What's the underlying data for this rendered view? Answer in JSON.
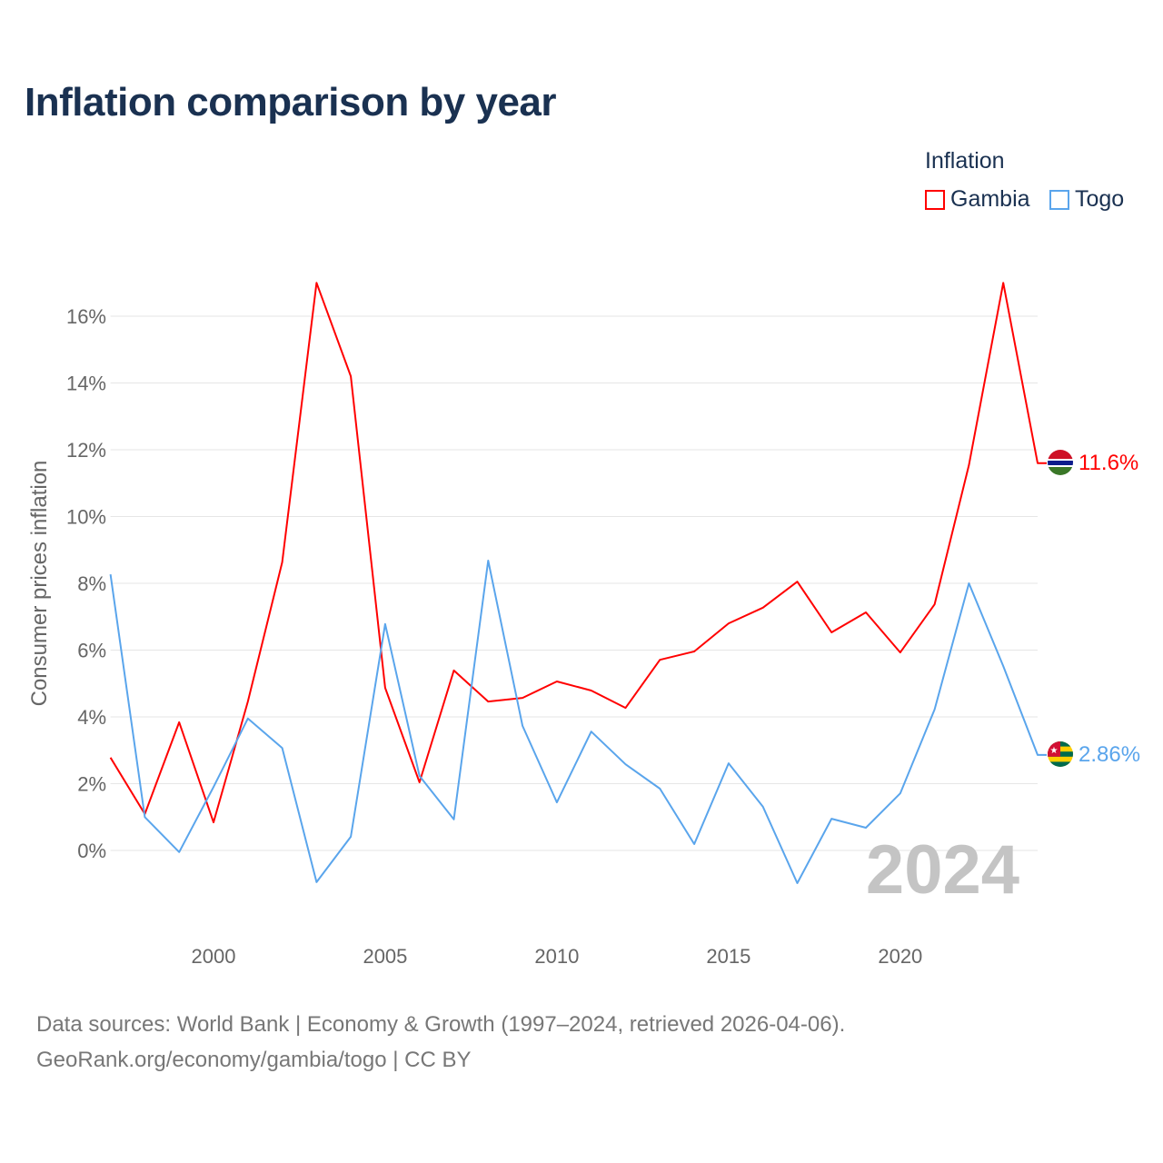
{
  "title": "Inflation comparison by year",
  "legend": {
    "title": "Inflation",
    "items": [
      {
        "name": "Gambia",
        "color": "#ff0000"
      },
      {
        "name": "Togo",
        "color": "#5aa5ec"
      }
    ]
  },
  "watermark_year": "2024",
  "source": {
    "line1": "Data sources: World Bank | Economy & Growth (1997–2024, retrieved 2026-04-06).",
    "line2": "GeoRank.org/economy/gambia/togo | CC BY"
  },
  "chart_data": {
    "type": "line",
    "title": "Inflation comparison by year",
    "xlabel": "",
    "ylabel": "Consumer prices inflation",
    "x": [
      1997,
      1998,
      1999,
      2000,
      2001,
      2002,
      2003,
      2004,
      2005,
      2006,
      2007,
      2008,
      2009,
      2010,
      2011,
      2012,
      2013,
      2014,
      2015,
      2016,
      2017,
      2018,
      2019,
      2020,
      2021,
      2022,
      2023,
      2024
    ],
    "xlim": [
      1997,
      2024
    ],
    "ylim": [
      -2,
      17
    ],
    "xticks": [
      2000,
      2005,
      2010,
      2015,
      2020
    ],
    "xtick_labels": [
      "2000",
      "2005",
      "2010",
      "2015",
      "2020"
    ],
    "yticks": [
      0,
      2,
      4,
      6,
      8,
      10,
      12,
      14,
      16
    ],
    "ytick_labels": [
      "0%",
      "2%",
      "4%",
      "6%",
      "8%",
      "10%",
      "12%",
      "14%",
      "16%"
    ],
    "grid": true,
    "legend_position": "top-right",
    "series": [
      {
        "name": "Gambia",
        "color": "#ff0000",
        "end_label": "11.6%",
        "values": [
          2.78,
          1.09,
          3.84,
          0.84,
          4.46,
          8.63,
          17.0,
          14.2,
          4.87,
          2.04,
          5.39,
          4.46,
          4.57,
          5.06,
          4.79,
          4.27,
          5.71,
          5.96,
          6.8,
          7.27,
          8.05,
          6.53,
          7.13,
          5.93,
          7.37,
          11.54,
          17.0,
          11.6
        ]
      },
      {
        "name": "Togo",
        "color": "#5aa5ec",
        "end_label": "2.86%",
        "values": [
          8.27,
          1.0,
          -0.05,
          1.9,
          3.95,
          3.07,
          -0.95,
          0.41,
          6.78,
          2.23,
          0.93,
          8.68,
          3.73,
          1.44,
          3.56,
          2.58,
          1.85,
          0.19,
          2.61,
          1.31,
          -0.98,
          0.95,
          0.68,
          1.71,
          4.22,
          8.0,
          5.52,
          2.86
        ]
      }
    ]
  }
}
